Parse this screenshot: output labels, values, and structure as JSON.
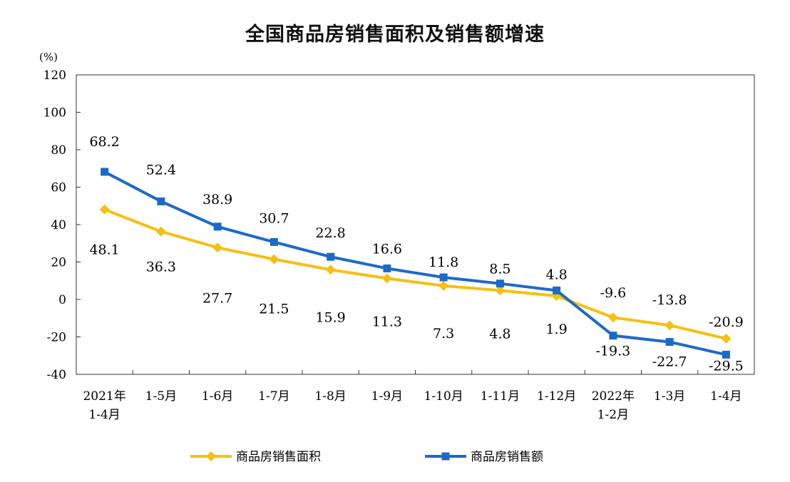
{
  "chart_data": {
    "type": "line",
    "title": "全国商品房销售面积及销售额增速",
    "y_unit": "(%)",
    "ylim": [
      -40,
      120
    ],
    "y_ticks": [
      "120",
      "100",
      "80",
      "60",
      "40",
      "20",
      "0",
      "-20",
      "-40"
    ],
    "categories": [
      [
        "2021年",
        "1-4月"
      ],
      [
        "1-5月"
      ],
      [
        "1-6月"
      ],
      [
        "1-7月"
      ],
      [
        "1-8月"
      ],
      [
        "1-9月"
      ],
      [
        "1-10月"
      ],
      [
        "1-11月"
      ],
      [
        "1-12月"
      ],
      [
        "2022年",
        "1-2月"
      ],
      [
        "1-3月"
      ],
      [
        "1-4月"
      ]
    ],
    "series": [
      {
        "name": "商品房销售面积",
        "color": "#F5C013",
        "marker": "diamond",
        "values": [
          48.1,
          36.3,
          27.7,
          21.5,
          15.9,
          11.3,
          7.3,
          4.8,
          1.9,
          -9.6,
          -13.8,
          -20.9
        ],
        "labels": [
          "48.1",
          "36.3",
          "27.7",
          "21.5",
          "15.9",
          "11.3",
          "7.3",
          "4.8",
          "1.9",
          "-9.6",
          "-13.8",
          "-20.9"
        ]
      },
      {
        "name": "商品房销售额",
        "color": "#1C6AC8",
        "marker": "square",
        "values": [
          68.2,
          52.4,
          38.9,
          30.7,
          22.8,
          16.6,
          11.8,
          8.5,
          4.8,
          -19.3,
          -22.7,
          -29.5
        ],
        "labels": [
          "68.2",
          "52.4",
          "38.9",
          "30.7",
          "22.8",
          "16.6",
          "11.8",
          "8.5",
          "4.8",
          "-19.3",
          "-22.7",
          "-29.5"
        ]
      }
    ],
    "legend_position": "bottom",
    "grid": false
  }
}
